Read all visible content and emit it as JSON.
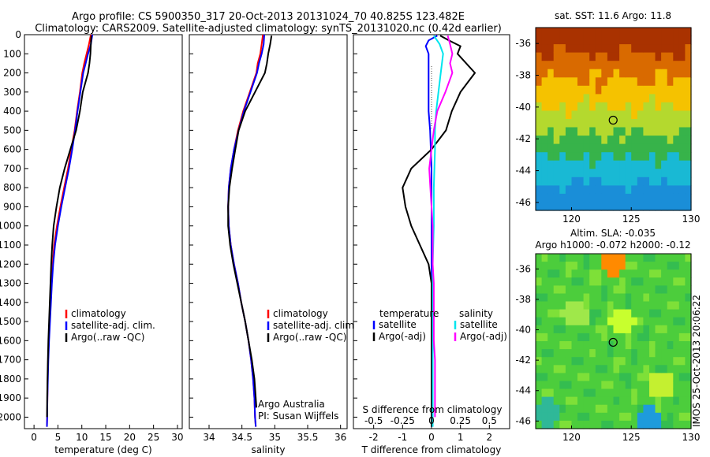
{
  "header": {
    "line1": "Argo profile: CS 5900350_317 20-Oct-2013 20131024_70 40.825S 123.482E",
    "line2": "Climatology: CARS2009. Satellite-adjusted climatology: synTS_20131020.nc (0.42d earlier)"
  },
  "depth_ticks": [
    "0",
    "100",
    "200",
    "300",
    "400",
    "500",
    "600",
    "700",
    "800",
    "900",
    "1000",
    "1100",
    "1200",
    "1300",
    "1400",
    "1500",
    "1600",
    "1700",
    "1800",
    "1900",
    "2000"
  ],
  "colors": {
    "climatology": "#ff0000",
    "satellite": "#0000ff",
    "argo": "#000000",
    "sat_salinity": "#00e5ee",
    "argo_salinity": "#ff00ff"
  },
  "chart_data": [
    {
      "type": "line",
      "xlabel": "temperature (deg C)",
      "ylabel": "",
      "xlim": [
        -2,
        31
      ],
      "ylim": [
        2060,
        0
      ],
      "yreversed": true,
      "xticks": [
        "0",
        "5",
        "10",
        "15",
        "20",
        "25",
        "30"
      ],
      "legend": {
        "placement": "lower-right",
        "entries": [
          "climatology",
          "satellite-adj. clim.",
          "Argo(..raw -QC)"
        ]
      },
      "series": [
        {
          "name": "climatology",
          "color": "#ff0000",
          "y": [
            0,
            50,
            100,
            150,
            200,
            300,
            400,
            500,
            600,
            700,
            800,
            900,
            1000,
            1100,
            1200,
            1300,
            1400,
            1500,
            1600,
            1700,
            1800,
            1900,
            2000,
            2050
          ],
          "x": [
            11.9,
            11.5,
            11.0,
            10.5,
            10.1,
            9.6,
            9.0,
            8.5,
            7.8,
            7.1,
            6.3,
            5.5,
            4.8,
            4.2,
            3.9,
            3.7,
            3.5,
            3.3,
            3.1,
            2.95,
            2.85,
            2.8,
            2.75,
            2.7
          ]
        },
        {
          "name": "satellite-adj. clim.",
          "color": "#0000ff",
          "y": [
            0,
            50,
            100,
            150,
            200,
            300,
            400,
            500,
            600,
            700,
            800,
            900,
            1000,
            1100,
            1200,
            1300,
            1400,
            1500,
            1600,
            1700,
            1800,
            1900,
            2000,
            2050
          ],
          "x": [
            12.2,
            11.9,
            11.3,
            10.8,
            10.3,
            9.7,
            9.1,
            8.6,
            8.0,
            7.3,
            6.5,
            5.7,
            5.0,
            4.4,
            4.0,
            3.75,
            3.55,
            3.35,
            3.15,
            3.0,
            2.9,
            2.8,
            2.75,
            2.7
          ]
        },
        {
          "name": "Argo(..raw -QC)",
          "color": "#000000",
          "y": [
            5,
            50,
            100,
            150,
            200,
            300,
            400,
            500,
            600,
            700,
            800,
            900,
            1000,
            1100,
            1200,
            1300,
            1400,
            1500,
            1600,
            1700,
            1800,
            1900,
            2000
          ],
          "x": [
            12.0,
            11.9,
            11.8,
            11.6,
            11.3,
            10.2,
            9.6,
            8.8,
            7.6,
            6.4,
            5.4,
            4.7,
            4.1,
            3.8,
            3.6,
            3.45,
            3.3,
            3.15,
            3.0,
            2.9,
            2.82,
            2.76,
            2.72
          ]
        }
      ]
    },
    {
      "type": "line",
      "xlabel": "salinity",
      "ylabel": "",
      "xlim": [
        33.7,
        36.1
      ],
      "ylim": [
        2060,
        0
      ],
      "yreversed": true,
      "xticks": [
        "34",
        "34.5",
        "35",
        "35.5",
        "36"
      ],
      "legend": {
        "placement": "lower-right",
        "entries": [
          "climatology",
          "satellite-adj. clim.",
          "Argo(..raw -QC)"
        ]
      },
      "annotation": {
        "line1": "Argo Australia",
        "line2": "PI: Susan Wijffels"
      },
      "series": [
        {
          "name": "climatology",
          "color": "#ff0000",
          "y": [
            0,
            50,
            100,
            150,
            200,
            300,
            400,
            500,
            600,
            700,
            800,
            900,
            1000,
            1100,
            1200,
            1300,
            1400,
            1500,
            1600,
            1700,
            1800,
            1900,
            2000,
            2050
          ],
          "x": [
            34.82,
            34.8,
            34.78,
            34.74,
            34.72,
            34.62,
            34.52,
            34.44,
            34.38,
            34.33,
            34.3,
            34.29,
            34.3,
            34.33,
            34.38,
            34.44,
            34.49,
            34.55,
            34.6,
            34.64,
            34.67,
            34.69,
            34.7,
            34.71
          ]
        },
        {
          "name": "satellite-adj. clim.",
          "color": "#0000ff",
          "y": [
            0,
            50,
            100,
            150,
            200,
            300,
            400,
            500,
            600,
            700,
            800,
            900,
            1000,
            1100,
            1200,
            1300,
            1400,
            1500,
            1600,
            1700,
            1800,
            1900,
            2000,
            2050
          ],
          "x": [
            34.84,
            34.83,
            34.8,
            34.76,
            34.73,
            34.63,
            34.53,
            34.45,
            34.38,
            34.33,
            34.3,
            34.29,
            34.3,
            34.33,
            34.38,
            34.44,
            34.49,
            34.55,
            34.6,
            34.64,
            34.67,
            34.69,
            34.7,
            34.71
          ]
        },
        {
          "name": "Argo(..raw -QC)",
          "color": "#000000",
          "y": [
            5,
            50,
            100,
            150,
            200,
            300,
            400,
            500,
            600,
            700,
            800,
            900,
            1000,
            1100,
            1200,
            1300,
            1400,
            1500,
            1600,
            1700,
            1800,
            1900,
            1950
          ],
          "x": [
            34.95,
            34.93,
            34.9,
            34.88,
            34.85,
            34.7,
            34.55,
            34.45,
            34.4,
            34.35,
            34.31,
            34.29,
            34.29,
            34.32,
            34.37,
            34.43,
            34.49,
            34.55,
            34.6,
            34.65,
            34.69,
            34.71,
            34.72
          ]
        }
      ]
    },
    {
      "type": "line",
      "xlabel": "T difference from climatology",
      "x2label": "S difference from climatology",
      "ylabel": "",
      "xlim": [
        -2.7,
        2.7
      ],
      "x2lim": [
        -0.675,
        0.675
      ],
      "ylim": [
        2060,
        0
      ],
      "yreversed": true,
      "xticks": [
        "-2",
        "-1",
        "0",
        "1",
        "2"
      ],
      "x2ticks": [
        "-0.5",
        "-0.25",
        "0",
        "0.25",
        "0.5"
      ],
      "legend": {
        "placement": "lower-center",
        "temperature_header": "temperature",
        "salinity_header": "salinity",
        "entries": [
          "satellite",
          "Argo(-adj)",
          "satellite",
          "Argo(-adj)"
        ]
      },
      "series": [
        {
          "name": "satellite",
          "axis": "T",
          "color": "#0000ff",
          "y": [
            5,
            30,
            60,
            100,
            200,
            300,
            400,
            500,
            700,
            1000,
            1500,
            2000,
            2050
          ],
          "x": [
            0.2,
            -0.1,
            -0.2,
            -0.1,
            -0.1,
            -0.1,
            -0.1,
            -0.05,
            0,
            0,
            0,
            0,
            0
          ]
        },
        {
          "name": "Argo(-adj)",
          "axis": "T",
          "color": "#000000",
          "y": [
            5,
            30,
            60,
            100,
            150,
            200,
            300,
            400,
            500,
            600,
            700,
            800,
            900,
            1000,
            1100,
            1200,
            1300,
            1400,
            1500,
            1600,
            1700,
            1800,
            1900,
            2000,
            2050
          ],
          "x": [
            0.3,
            0.6,
            1.0,
            0.9,
            1.2,
            1.5,
            1.0,
            0.7,
            0.5,
            0.0,
            -0.7,
            -1.0,
            -0.9,
            -0.7,
            -0.4,
            -0.1,
            0,
            0,
            0,
            0,
            0,
            0,
            0,
            0,
            0
          ]
        },
        {
          "name": "satellite",
          "axis": "S",
          "color": "#00e5ee",
          "y": [
            5,
            50,
            100,
            150,
            200,
            300,
            400,
            500,
            600,
            800,
            1000,
            1200,
            1500,
            1800,
            2050
          ],
          "x": [
            0.02,
            0.07,
            0.1,
            0.09,
            0.08,
            0.06,
            0.04,
            0.03,
            0.03,
            0.02,
            0.02,
            0.01,
            0.01,
            0.01,
            0.01
          ]
        },
        {
          "name": "Argo(-adj)",
          "axis": "S",
          "color": "#ff00ff",
          "y": [
            5,
            50,
            100,
            150,
            200,
            300,
            400,
            500,
            600,
            700,
            800,
            900,
            1000,
            1100,
            1200,
            1300,
            1400,
            1500,
            1600,
            1700,
            1800,
            1900,
            2000
          ],
          "x": [
            0.14,
            0.16,
            0.18,
            0.16,
            0.18,
            0.12,
            0.05,
            0.02,
            0.0,
            -0.02,
            -0.01,
            0.0,
            0.01,
            0.01,
            0.01,
            0.02,
            0.02,
            0.02,
            0.02,
            0.03,
            0.03,
            0.03,
            0.03
          ]
        }
      ]
    },
    {
      "type": "heatmap",
      "title": "sat. SST: 11.6  Argo: 11.8",
      "xlim": [
        117,
        130
      ],
      "ylim": [
        -46.5,
        -35
      ],
      "xticks": [
        "120",
        "125",
        "130"
      ],
      "yticks": [
        "-36",
        "-38",
        "-40",
        "-42",
        "-44",
        "-46"
      ],
      "marker": {
        "lon": 123.482,
        "lat": -40.825
      },
      "colors_by_latitude": [
        "#a93200",
        "#d96a00",
        "#f5c200",
        "#b4d92e",
        "#37b34a",
        "#19b9d4",
        "#1a8ed8"
      ]
    },
    {
      "type": "heatmap",
      "title": "Altim. SLA: -0.035",
      "subtitle": "Argo h1000: -0.072  h2000: -0.12",
      "xlim": [
        117,
        130
      ],
      "ylim": [
        -46.5,
        -35
      ],
      "xticks": [
        "120",
        "125",
        "130"
      ],
      "yticks": [
        "-36",
        "-38",
        "-40",
        "-42",
        "-44",
        "-46"
      ],
      "marker": {
        "lon": 123.482,
        "lat": -40.825
      },
      "base_color": "#4ccd3c",
      "blobs": [
        {
          "lon": 123.5,
          "lat": -35.6,
          "color": "#ff8a00"
        },
        {
          "lon": 124.2,
          "lat": -39.5,
          "color": "#c8ff2e"
        },
        {
          "lon": 120.3,
          "lat": -39.0,
          "color": "#9fe84a"
        },
        {
          "lon": 127.5,
          "lat": -43.5,
          "color": "#c4f030"
        },
        {
          "lon": 126.5,
          "lat": -46.0,
          "color": "#1e9bdc"
        },
        {
          "lon": 118.0,
          "lat": -45.5,
          "color": "#2fb898"
        }
      ]
    }
  ],
  "footer": {
    "side_text": "IMOS 25-Oct-2013 20:06:22"
  }
}
